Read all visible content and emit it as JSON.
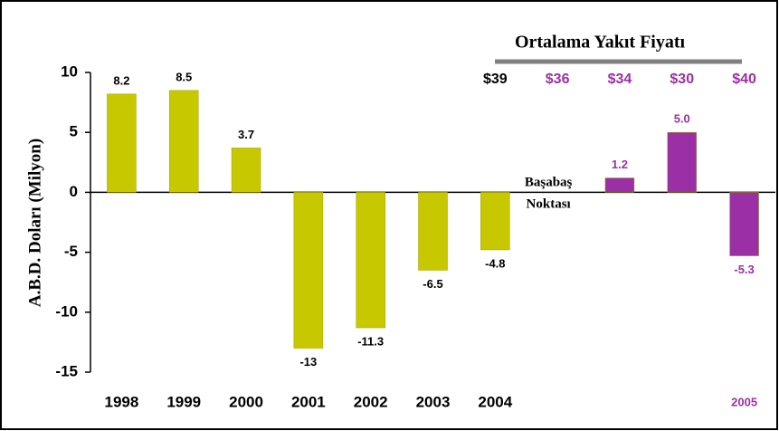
{
  "chart_data": {
    "type": "bar",
    "y_label": "A.B.D. Doları (Milyon)",
    "categories": [
      "1998",
      "1999",
      "2000",
      "2001",
      "2002",
      "2003",
      "2004",
      null,
      null,
      null,
      "2005"
    ],
    "category_colors": [
      "#000000",
      "#000000",
      "#000000",
      "#000000",
      "#000000",
      "#000000",
      "#000000",
      null,
      null,
      null,
      "#9b2fa6"
    ],
    "values": [
      8.2,
      8.5,
      3.7,
      -13,
      -11.3,
      -6.5,
      -4.8,
      null,
      1.2,
      5.0,
      -5.3
    ],
    "value_labels": [
      "8.2",
      "8.5",
      "3.7",
      "-13",
      "-11.3",
      "-6.5",
      "-4.8",
      null,
      "1.2",
      "5.0",
      "-5.3"
    ],
    "colors": [
      "#c8c800",
      "#c8c800",
      "#c8c800",
      "#c8c800",
      "#c8c800",
      "#c8c800",
      "#c8c800",
      null,
      "#9b2fa6",
      "#9b2fa6",
      "#9b2fa6"
    ],
    "value_label_colors": [
      "#000000",
      "#000000",
      "#000000",
      "#000000",
      "#000000",
      "#000000",
      "#000000",
      null,
      "#9b2fa6",
      "#9b2fa6",
      "#9b2fa6"
    ],
    "ylim": [
      -15,
      10
    ],
    "yticks": [
      -15,
      -10,
      -5,
      0,
      5,
      10
    ],
    "annotation": [
      "Başabaş",
      "Noktası"
    ],
    "price_title": "Ortalama Yakıt Fiyatı",
    "prices": [
      null,
      null,
      null,
      null,
      null,
      null,
      "$39",
      "$36",
      "$34",
      "$30",
      "$40"
    ],
    "price_colors": [
      null,
      null,
      null,
      null,
      null,
      null,
      "#000000",
      "#9b2fa6",
      "#9b2fa6",
      "#9b2fa6",
      "#9b2fa6"
    ]
  }
}
